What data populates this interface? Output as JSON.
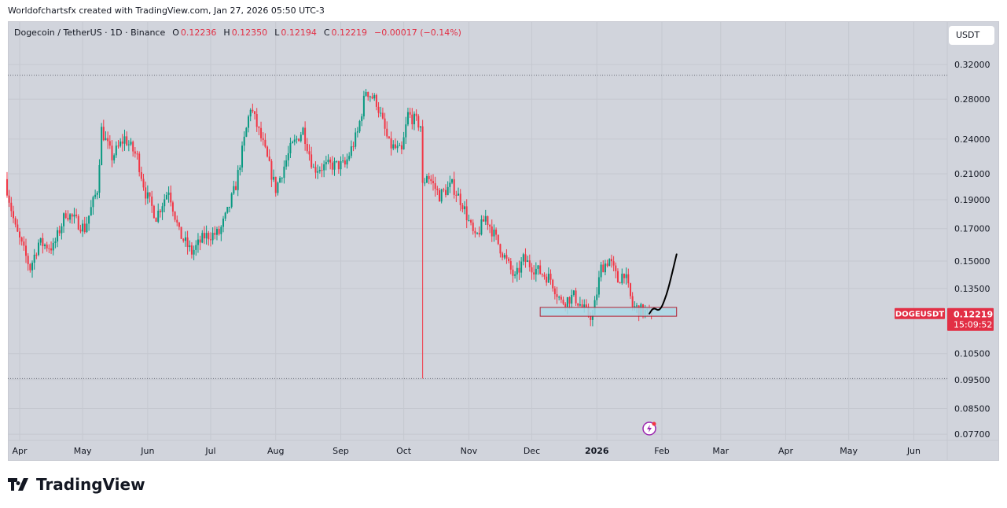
{
  "header": {
    "credit": "Worldofchartsfx created with TradingView.com, Jan 27, 2026 05:50 UTC-3"
  },
  "legend": {
    "symbol": "Dogecoin / TetherUS · 1D · Binance",
    "o_label": "O",
    "o": "0.12236",
    "h_label": "H",
    "h": "0.12350",
    "l_label": "L",
    "l": "0.12194",
    "c_label": "C",
    "c": "0.12219",
    "change": "−0.00017 (−0.14%)"
  },
  "currency_button": "USDT",
  "price_tag": {
    "symbol": "DOGEUSDT",
    "price": "0.12219",
    "countdown": "15:09:52"
  },
  "footer": {
    "brand": "TradingView"
  },
  "colors": {
    "up": "#089981",
    "down": "#f23645",
    "background": "#d1d4dc",
    "zone_fill": "#add8e6",
    "zone_border": "#b22234",
    "projection": "#000000",
    "tag": "#e22f45"
  },
  "chart_data": {
    "type": "candlestick",
    "scale": "log",
    "grid": true,
    "ylim": [
      0.077,
      0.33
    ],
    "xlim": [
      "2025-03-25",
      "2026-06-20"
    ],
    "y_ticks": [
      "0.32000",
      "0.28000",
      "0.24000",
      "0.21000",
      "0.19000",
      "0.17000",
      "0.15000",
      "0.13500",
      "0.10500",
      "0.09500",
      "0.08500",
      "0.07700"
    ],
    "x_ticks": [
      [
        "2025-04-01",
        "Apr"
      ],
      [
        "2025-05-01",
        "May"
      ],
      [
        "2025-06-01",
        "Jun"
      ],
      [
        "2025-07-01",
        "Jul"
      ],
      [
        "2025-08-01",
        "Aug"
      ],
      [
        "2025-09-01",
        "Sep"
      ],
      [
        "2025-10-01",
        "Oct"
      ],
      [
        "2025-11-01",
        "Nov"
      ],
      [
        "2025-12-01",
        "Dec"
      ],
      [
        "2026-01-01",
        "2026"
      ],
      [
        "2026-02-01",
        "Feb"
      ],
      [
        "2026-03-01",
        "Mar"
      ],
      [
        "2026-04-01",
        "Apr"
      ],
      [
        "2026-05-01",
        "May"
      ],
      [
        "2026-06-01",
        "Jun"
      ]
    ],
    "close_path": [
      [
        "2025-03-26",
        0.198
      ],
      [
        "2025-03-30",
        0.17
      ],
      [
        "2025-04-06",
        0.146
      ],
      [
        "2025-04-10",
        0.161
      ],
      [
        "2025-04-17",
        0.158
      ],
      [
        "2025-04-23",
        0.181
      ],
      [
        "2025-05-02",
        0.17
      ],
      [
        "2025-05-08",
        0.198
      ],
      [
        "2025-05-10",
        0.249
      ],
      [
        "2025-05-15",
        0.224
      ],
      [
        "2025-05-21",
        0.241
      ],
      [
        "2025-05-27",
        0.224
      ],
      [
        "2025-05-31",
        0.195
      ],
      [
        "2025-06-05",
        0.178
      ],
      [
        "2025-06-11",
        0.198
      ],
      [
        "2025-06-16",
        0.167
      ],
      [
        "2025-06-22",
        0.155
      ],
      [
        "2025-06-28",
        0.165
      ],
      [
        "2025-07-05",
        0.167
      ],
      [
        "2025-07-09",
        0.181
      ],
      [
        "2025-07-13",
        0.201
      ],
      [
        "2025-07-20",
        0.272
      ],
      [
        "2025-07-26",
        0.235
      ],
      [
        "2025-08-01",
        0.198
      ],
      [
        "2025-08-08",
        0.231
      ],
      [
        "2025-08-14",
        0.249
      ],
      [
        "2025-08-19",
        0.214
      ],
      [
        "2025-08-27",
        0.217
      ],
      [
        "2025-09-03",
        0.217
      ],
      [
        "2025-09-09",
        0.246
      ],
      [
        "2025-09-13",
        0.29
      ],
      [
        "2025-09-18",
        0.277
      ],
      [
        "2025-09-24",
        0.235
      ],
      [
        "2025-09-30",
        0.228
      ],
      [
        "2025-10-03",
        0.264
      ],
      [
        "2025-10-09",
        0.253
      ],
      [
        "2025-10-10",
        0.2
      ],
      [
        "2025-10-12",
        0.21
      ],
      [
        "2025-10-18",
        0.193
      ],
      [
        "2025-10-24",
        0.201
      ],
      [
        "2025-10-29",
        0.187
      ],
      [
        "2025-11-04",
        0.163
      ],
      [
        "2025-11-09",
        0.178
      ],
      [
        "2025-11-17",
        0.155
      ],
      [
        "2025-11-23",
        0.14
      ],
      [
        "2025-11-27",
        0.151
      ],
      [
        "2025-12-02",
        0.146
      ],
      [
        "2025-12-10",
        0.14
      ],
      [
        "2025-12-15",
        0.128
      ],
      [
        "2025-12-21",
        0.131
      ],
      [
        "2025-12-27",
        0.123
      ],
      [
        "2025-12-30",
        0.121
      ],
      [
        "2026-01-03",
        0.146
      ],
      [
        "2026-01-07",
        0.151
      ],
      [
        "2026-01-11",
        0.139
      ],
      [
        "2026-01-14",
        0.144
      ],
      [
        "2026-01-18",
        0.126
      ],
      [
        "2026-01-22",
        0.124
      ],
      [
        "2026-01-27",
        0.12219
      ]
    ],
    "crash_low": [
      "2025-10-10",
      0.0954
    ],
    "high_line": 0.307,
    "low_line": 0.0954,
    "support_zone": {
      "from": "2025-12-05",
      "to": "2026-02-08",
      "top": 0.1255,
      "bottom": 0.1213
    },
    "projection": [
      [
        "2026-01-26",
        0.1225
      ],
      [
        "2026-01-28",
        0.1255
      ],
      [
        "2026-01-31",
        0.1235
      ],
      [
        "2026-02-03",
        0.131
      ],
      [
        "2026-02-05",
        0.139
      ],
      [
        "2026-02-08",
        0.154
      ]
    ]
  }
}
